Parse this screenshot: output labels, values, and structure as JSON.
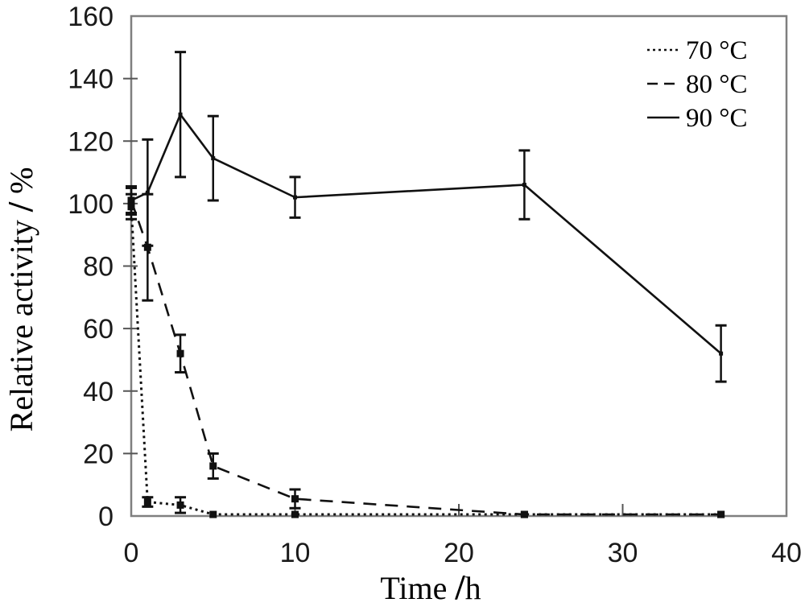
{
  "figure": {
    "kind": "scientific line chart with error bars",
    "background": "#ffffff"
  },
  "colors": {
    "data": "#111111",
    "axis_box": "#7f7f7f",
    "tick": "#555555",
    "text": "#000000"
  },
  "chart_data": {
    "type": "line",
    "title": "",
    "xlabel": "Time / h",
    "ylabel": "Relative activity / %",
    "xlabel_parts": [
      "Time ",
      "/",
      "h"
    ],
    "ylabel_parts": [
      "Relative activity ",
      "/",
      " %"
    ],
    "xlim": [
      0,
      40
    ],
    "ylim": [
      0,
      160
    ],
    "x_ticks": [
      0,
      10,
      20,
      30,
      40
    ],
    "y_ticks": [
      0,
      20,
      40,
      60,
      80,
      100,
      120,
      140,
      160
    ],
    "grid": false,
    "legend_position": "top-right",
    "x": [
      0,
      1,
      3,
      5,
      10,
      24,
      36
    ],
    "series": [
      {
        "name": "70 °C",
        "line_style": "dotted",
        "values": [
          99,
          4.5,
          3.5,
          0.5,
          0.5,
          0.5,
          0.5
        ],
        "errors": [
          4,
          1.5,
          2.5,
          0,
          0,
          0,
          0
        ],
        "marker": "square",
        "marker_size": 9
      },
      {
        "name": "80 °C",
        "line_style": "dashed",
        "values": [
          101,
          86,
          52,
          16,
          5.5,
          0.5,
          0.5
        ],
        "errors": [
          4,
          17,
          6,
          4,
          3,
          0,
          0
        ],
        "marker": "square",
        "marker_size": 9
      },
      {
        "name": "90 °C",
        "line_style": "solid",
        "values": [
          101,
          103.5,
          128.5,
          114.5,
          102,
          106,
          52
        ],
        "errors": [
          4.5,
          17,
          20,
          13.5,
          6.5,
          11,
          9
        ],
        "marker": "square",
        "marker_size": 5
      }
    ],
    "legend": [
      {
        "label": "70 °C",
        "line_style": "dotted"
      },
      {
        "label": "80 °C",
        "line_style": "dashed"
      },
      {
        "label": "90 °C",
        "line_style": "solid"
      }
    ]
  }
}
